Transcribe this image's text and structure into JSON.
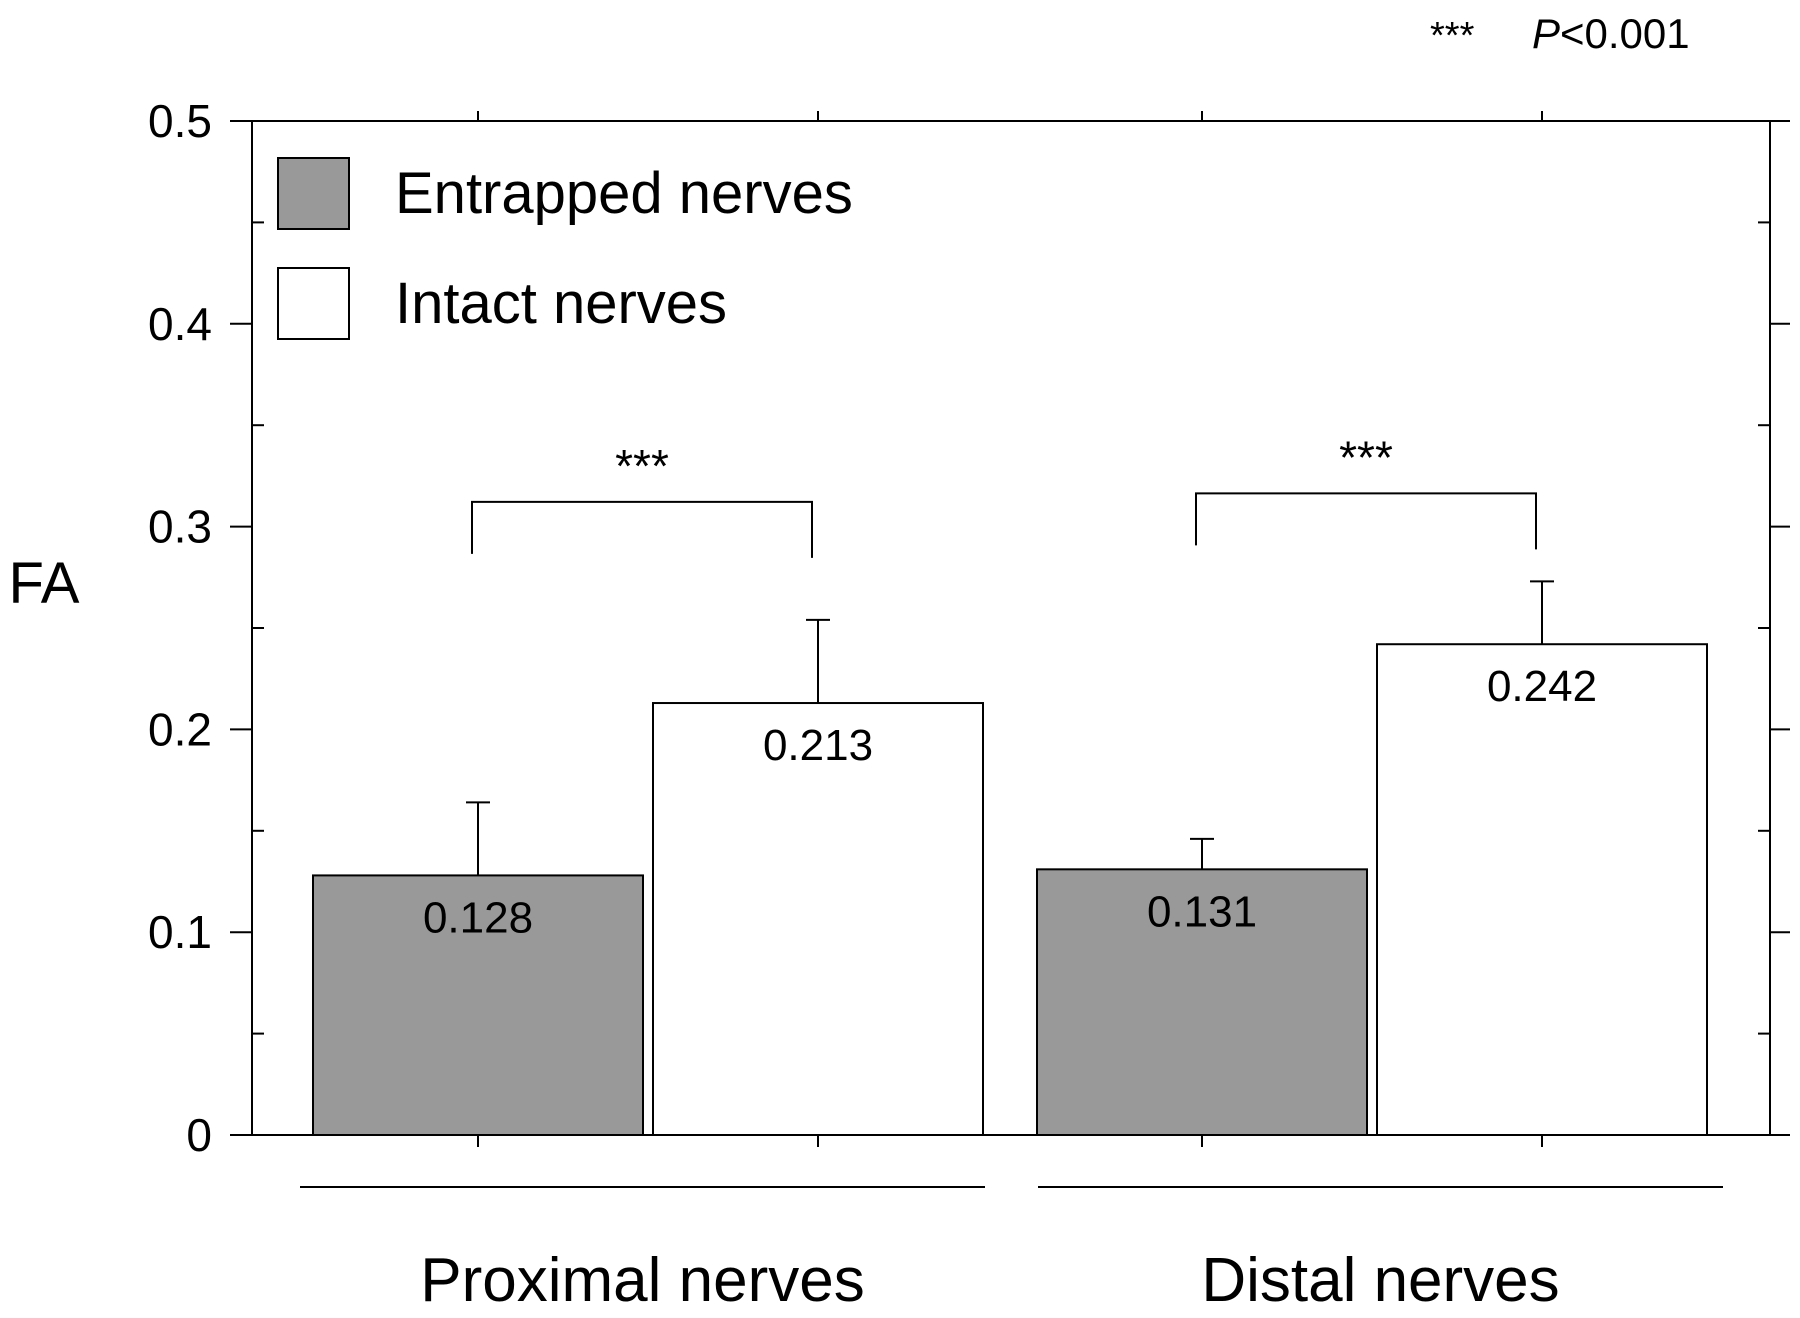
{
  "chart_data": {
    "type": "bar",
    "ylabel": "FA",
    "xlabel": "",
    "title": "",
    "ylim": [
      0,
      0.5
    ],
    "yticks": [
      "0",
      "0.1",
      "0.2",
      "0.3",
      "0.4",
      "0.5"
    ],
    "ytick_values": [
      0,
      0.1,
      0.2,
      0.3,
      0.4,
      0.5
    ],
    "grid": false,
    "legend_position": "top-left",
    "categories": [
      "Proximal nerves",
      "Distal nerves"
    ],
    "series": [
      {
        "name": "Entrapped nerves",
        "color": "#999999",
        "values": [
          0.128,
          0.131
        ],
        "error_upper": [
          0.164,
          0.146
        ],
        "labels": [
          "0.128",
          "0.131"
        ]
      },
      {
        "name": "Intact nerves",
        "color": "#ffffff",
        "values": [
          0.213,
          0.242
        ],
        "error_upper": [
          0.254,
          0.273
        ],
        "labels": [
          "0.213",
          "0.242"
        ]
      }
    ],
    "significance": [
      {
        "category": "Proximal nerves",
        "marker": "***"
      },
      {
        "category": "Distal nerves",
        "marker": "***"
      }
    ],
    "annotation": {
      "stars": "***",
      "p_label": "P",
      "p_rest": "<0.001"
    }
  }
}
